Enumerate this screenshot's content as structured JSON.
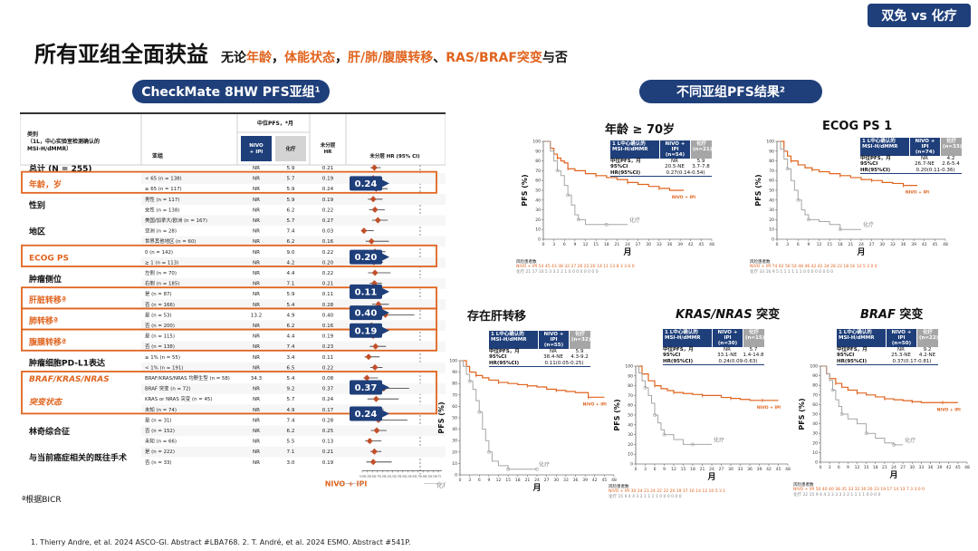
{
  "badge": "双免 vs 化疗",
  "title": "所有亚组全面获益",
  "subtitle_parts": [
    {
      "t": "无论",
      "hl": false
    },
    {
      "t": "年龄",
      "hl": true
    },
    {
      "t": "，",
      "hl": false
    },
    {
      "t": "体能状态",
      "hl": true
    },
    {
      "t": "，",
      "hl": false
    },
    {
      "t": "肝/肺/腹膜转移",
      "hl": true
    },
    {
      "t": "、",
      "hl": false
    },
    {
      "t": "RAS/BRAF突变",
      "hl": true
    },
    {
      "t": "与否",
      "hl": false
    }
  ],
  "left_pill": "CheckMate 8HW PFS亚组¹",
  "right_pill": "不同亚组PFS结果²",
  "forest": {
    "header": {
      "category": "类别\n（1L，中心实验室检测确认的\nMSI-H/dMMR）",
      "subgroup": "亚组",
      "median_pfs": "中位PFS，*月",
      "nivo": "NIVO\n+ IPI",
      "chemo": "化疗",
      "hr": "未分层\nHR",
      "plot": "未分层 HR (95% CI)"
    },
    "rows": [
      {
        "sub": "",
        "nv": "NR",
        "ch": "5.9",
        "hr": "0.21",
        "lo": 0.14,
        "hi": 0.32
      },
      {
        "sub": "< 65 (n = 138)",
        "nv": "NR",
        "ch": "5.7",
        "hr": "0.19",
        "lo": 0.11,
        "hi": 0.33
      },
      {
        "sub": "≥ 65 (n = 117)",
        "nv": "NR",
        "ch": "5.9",
        "hr": "0.24",
        "lo": 0.13,
        "hi": 0.44
      },
      {
        "sub": "男性 (n = 117)",
        "nv": "NR",
        "ch": "5.9",
        "hr": "0.19",
        "lo": 0.1,
        "hi": 0.35
      },
      {
        "sub": "女性 (n = 138)",
        "nv": "NR",
        "ch": "6.2",
        "hr": "0.22",
        "lo": 0.12,
        "hi": 0.39
      },
      {
        "sub": "美国/加拿大/欧洲 (n = 167)",
        "nv": "NR",
        "ch": "5.7",
        "hr": "0.27",
        "lo": 0.17,
        "hi": 0.44
      },
      {
        "sub": "亚洲 (n = 28)",
        "nv": "NR",
        "ch": "7.4",
        "hr": "0.03",
        "lo": 0.01,
        "hi": 0.2
      },
      {
        "sub": "世界其他地区 (n = 60)",
        "nv": "NR",
        "ch": "6.2",
        "hr": "0.16",
        "lo": 0.06,
        "hi": 0.46
      },
      {
        "sub": "0 (n = 142)",
        "nv": "NR",
        "ch": "9.0",
        "hr": "0.22",
        "lo": 0.12,
        "hi": 0.4
      },
      {
        "sub": "≥ 1 (n = 113)",
        "nv": "NR",
        "ch": "4.2",
        "hr": "0.20",
        "lo": 0.11,
        "hi": 0.36
      },
      {
        "sub": "左侧 (n = 70)",
        "nv": "NR",
        "ch": "4.4",
        "hr": "0.22",
        "lo": 0.1,
        "hi": 0.49
      },
      {
        "sub": "右侧 (n = 185)",
        "nv": "NR",
        "ch": "7.1",
        "hr": "0.21",
        "lo": 0.13,
        "hi": 0.34
      },
      {
        "sub": "是 (n = 87)",
        "nv": "NR",
        "ch": "5.9",
        "hr": "0.11",
        "lo": 0.05,
        "hi": 0.25
      },
      {
        "sub": "否 (n = 166)",
        "nv": "NR",
        "ch": "5.4",
        "hr": "0.28",
        "lo": 0.17,
        "hi": 0.46
      },
      {
        "sub": "是 (n = 53)",
        "nv": "13.2",
        "ch": "4.9",
        "hr": "0.40",
        "lo": 0.18,
        "hi": 0.9
      },
      {
        "sub": "否 (n = 200)",
        "nv": "NR",
        "ch": "6.2",
        "hr": "0.16",
        "lo": 0.1,
        "hi": 0.27
      },
      {
        "sub": "是 (n = 115)",
        "nv": "NR",
        "ch": "4.4",
        "hr": "0.19",
        "lo": 0.11,
        "hi": 0.34
      },
      {
        "sub": "否 (n = 138)",
        "nv": "NR",
        "ch": "7.4",
        "hr": "0.23",
        "lo": 0.13,
        "hi": 0.41
      },
      {
        "sub": "≥ 1% (n = 55)",
        "nv": "NR",
        "ch": "3.4",
        "hr": "0.11",
        "lo": 0.04,
        "hi": 0.3
      },
      {
        "sub": "< 1% (n = 191)",
        "nv": "NR",
        "ch": "6.5",
        "hr": "0.22",
        "lo": 0.14,
        "hi": 0.35
      },
      {
        "sub": "BRAF/KRAS/NRAS 均野生型 (n = 58)",
        "nv": "34.3",
        "ch": "5.4",
        "hr": "0.08",
        "lo": 0.02,
        "hi": 0.27
      },
      {
        "sub": "BRAF 突变 (n = 72)",
        "nv": "NR",
        "ch": "9.2",
        "hr": "0.37",
        "lo": 0.17,
        "hi": 0.81
      },
      {
        "sub": "KRAS or NRAS 突变 (n = 45)",
        "nv": "NR",
        "ch": "5.7",
        "hr": "0.24",
        "lo": 0.09,
        "hi": 0.63
      },
      {
        "sub": "未知 (n = 74)",
        "nv": "NR",
        "ch": "4.9",
        "hr": "0.17",
        "lo": 0.08,
        "hi": 0.37
      },
      {
        "sub": "是 (n = 31)",
        "nv": "NR",
        "ch": "7.4",
        "hr": "0.28",
        "lo": 0.1,
        "hi": 0.78
      },
      {
        "sub": "否 (n = 152)",
        "nv": "NR",
        "ch": "6.2",
        "hr": "0.25",
        "lo": 0.15,
        "hi": 0.42
      },
      {
        "sub": "未知 (n = 66)",
        "nv": "NR",
        "ch": "5.5",
        "hr": "0.13",
        "lo": 0.05,
        "hi": 0.33
      },
      {
        "sub": "是 (n = 222)",
        "nv": "NR",
        "ch": "7.1",
        "hr": "0.21",
        "lo": 0.14,
        "hi": 0.33
      },
      {
        "sub": "否 (n = 33)",
        "nv": "NR",
        "ch": "3.0",
        "hr": "0.19",
        "lo": 0.07,
        "hi": 0.51
      }
    ],
    "groups": [
      {
        "label": "总计 (N = 255)",
        "orange": false,
        "italic": false
      },
      {
        "label": "年龄，岁",
        "orange": true,
        "italic": false
      },
      {
        "label": "性别",
        "orange": false,
        "italic": false
      },
      {
        "label": "地区",
        "orange": false,
        "italic": false
      },
      {
        "label": "ECOG PS",
        "orange": true,
        "italic": false
      },
      {
        "label": "肿瘤侧位",
        "orange": false,
        "italic": false
      },
      {
        "label": "肝脏转移ª",
        "orange": true,
        "italic": false
      },
      {
        "label": "肺转移ª",
        "orange": true,
        "italic": false
      },
      {
        "label": "腹膜转移ª",
        "orange": true,
        "italic": false
      },
      {
        "label": "肿瘤细胞PD-L1表达",
        "orange": false,
        "italic": false
      },
      {
        "label": "BRAF/KRAS/NRAS",
        "orange": true,
        "italic": true
      },
      {
        "label": "突变状态",
        "orange": true,
        "italic": true
      },
      {
        "label": "林奇综合征",
        "orange": false,
        "italic": false
      },
      {
        "label": "与当前癌症相关的既往手术",
        "orange": false,
        "italic": false
      }
    ],
    "callouts": [
      "0.24",
      "0.20",
      "0.11",
      "0.40",
      "0.19",
      "0.37",
      "0.24"
    ],
    "axis_ticks": [
      "0.00",
      "0.25",
      "0.50",
      "0.75",
      "1.00",
      "1.25",
      "1.50",
      "1.75",
      "2.00",
      "2.25",
      "2.50",
      "2.75",
      "3.00",
      "3.25",
      "3.50",
      "3.75"
    ],
    "favors_nivo": "NIVO + IPI",
    "favors_chemo": "化疗",
    "footnote": "ª根据BICR"
  },
  "colors": {
    "nivo": "#e0641e",
    "chemo": "#a6a6a6",
    "navy": "#1f3f7a"
  },
  "chart_data": [
    {
      "type": "line",
      "title": "年龄 ≥ 70岁",
      "xlabel": "月",
      "ylabel": "PFS (%)",
      "xlim": [
        0,
        48
      ],
      "ylim": [
        0,
        100
      ],
      "x_ticks": [
        0,
        3,
        6,
        9,
        12,
        15,
        18,
        21,
        24,
        27,
        30,
        33,
        36,
        39,
        42,
        45,
        48
      ],
      "legend": {
        "h1": "1 L中心确认的 MSI-H/dMMR",
        "nivo_h": "NIVO + IPI (n=54)",
        "chemo_h": "化疗 (n=21)",
        "r1": [
          "中位PFS，月",
          "NR",
          "5.9"
        ],
        "r2": [
          "95%CI",
          "20.5-NE",
          "3.7-7.8"
        ],
        "r3": [
          "HR(95%CI)",
          "0.27(0.14-0.54)"
        ]
      },
      "series": [
        {
          "name": "NIVO + IPI",
          "x": [
            0,
            2,
            3,
            4,
            5,
            6,
            7,
            9,
            12,
            15,
            18,
            21,
            24,
            27,
            30,
            33,
            36,
            40
          ],
          "y": [
            100,
            93,
            87,
            83,
            80,
            78,
            72,
            70,
            67,
            65,
            63,
            61,
            58,
            56,
            54,
            52,
            50,
            50
          ]
        },
        {
          "name": "化疗",
          "x": [
            0,
            2,
            3,
            4,
            5,
            6,
            7,
            8,
            9,
            10,
            12,
            15,
            18,
            21,
            24
          ],
          "y": [
            100,
            90,
            80,
            70,
            65,
            55,
            45,
            35,
            25,
            20,
            15,
            15,
            15,
            15,
            15
          ]
        }
      ],
      "risk_header": "风险患者数",
      "risk": {
        "nivo_label": "NIVO + IPI",
        "chemo_label": "化疗",
        "nivo": "54 45 43 38 32 27 26 22 20 14 11 13 8 3 3 0 0",
        "chemo": "21 17 10 5 3 3 2 2 1 0 0 0 0 0 0 0 0"
      },
      "curve_labels": {
        "nivo": "NIVO + IPI",
        "chemo": "化疗"
      }
    },
    {
      "type": "line",
      "title": "ECOG PS 1",
      "xlabel": "月",
      "ylabel": "PFS (%)",
      "xlim": [
        0,
        48
      ],
      "ylim": [
        0,
        100
      ],
      "x_ticks": [
        0,
        3,
        6,
        9,
        12,
        15,
        18,
        21,
        24,
        27,
        30,
        33,
        36,
        39,
        42,
        45,
        48
      ],
      "legend": {
        "h1": "1 L中心确认的 MSI-H/dMMR",
        "nivo_h": "NIVO + IPI (n=74)",
        "chemo_h": "化疗 (n=33)",
        "r1": [
          "中位PFS，月",
          "NR",
          "4.2"
        ],
        "r2": [
          "95%CI",
          "26.7-NE",
          "2.6-5.4"
        ],
        "r3": [
          "HR(95%CI)",
          "0.20(0.11-0.36)"
        ]
      },
      "series": [
        {
          "name": "NIVO + IPI",
          "x": [
            0,
            2,
            3,
            4,
            6,
            8,
            10,
            12,
            15,
            18,
            21,
            24,
            27,
            30,
            33,
            36,
            40
          ],
          "y": [
            100,
            90,
            85,
            80,
            76,
            73,
            71,
            69,
            67,
            65,
            63,
            61,
            60,
            58,
            57,
            55,
            55
          ]
        },
        {
          "name": "化疗",
          "x": [
            0,
            1,
            2,
            3,
            4,
            5,
            6,
            7,
            8,
            9,
            12,
            15,
            18,
            21,
            24
          ],
          "y": [
            100,
            92,
            82,
            72,
            60,
            50,
            40,
            30,
            25,
            20,
            18,
            15,
            10,
            10,
            10
          ]
        }
      ],
      "risk_header": "风险患者数",
      "risk": {
        "nivo_label": "NIVO + IPI",
        "chemo_label": "化疗",
        "nivo": "74 62 56 54 48 46 42 42 34 28 22 18 16 12 5 3 0 0",
        "chemo": "33 16 9 5 1 1 1 1 1 1 0 0 0 0 0 0 0 0"
      },
      "curve_labels": {
        "nivo": "NIVO + IPI",
        "chemo": "化疗"
      }
    },
    {
      "type": "line",
      "title": "存在肝转移",
      "xlabel": "月",
      "ylabel": "PFS (%)",
      "xlim": [
        0,
        48
      ],
      "ylim": [
        0,
        100
      ],
      "x_ticks": [
        0,
        3,
        6,
        9,
        12,
        15,
        18,
        21,
        24,
        27,
        30,
        33,
        36,
        39,
        42,
        45,
        48
      ],
      "legend": {
        "h1": "1 L中心确认的 MSI-H/dMMR",
        "nivo_h": "NIVO + IPI (n=55)",
        "chemo_h": "化疗 (n=32)",
        "r1": [
          "中位PFS，月",
          "NR",
          "5.9"
        ],
        "r2": [
          "95%CI",
          "38.4-NE",
          "4.3-9.2"
        ],
        "r3": [
          "HR(95%CI)",
          "0.11(0.05-0.25)"
        ]
      },
      "series": [
        {
          "name": "NIVO + IPI",
          "x": [
            0,
            2,
            3,
            5,
            7,
            9,
            12,
            15,
            18,
            21,
            24,
            27,
            30,
            33,
            36,
            40,
            45
          ],
          "y": [
            100,
            95,
            90,
            87,
            85,
            83,
            81,
            80,
            79,
            78,
            77,
            75,
            74,
            73,
            72,
            68,
            68
          ]
        },
        {
          "name": "化疗",
          "x": [
            0,
            1,
            2,
            3,
            4,
            5,
            6,
            7,
            8,
            9,
            10,
            12,
            15,
            18,
            21,
            24
          ],
          "y": [
            100,
            95,
            88,
            82,
            75,
            65,
            55,
            40,
            30,
            20,
            12,
            8,
            5,
            5,
            5,
            5
          ]
        }
      ],
      "risk": {},
      "curve_labels": {
        "nivo": "NIVO + IPI",
        "chemo": "化疗"
      }
    },
    {
      "type": "line",
      "title_parts": [
        {
          "t": "KRAS/NRAS",
          "it": true
        },
        {
          "t": " 突变",
          "it": false
        }
      ],
      "xlabel": "月",
      "ylabel": "PFS (%)",
      "xlim": [
        0,
        48
      ],
      "ylim": [
        0,
        100
      ],
      "x_ticks": [
        0,
        3,
        6,
        9,
        12,
        15,
        18,
        21,
        24,
        27,
        30,
        33,
        36,
        39,
        42,
        45,
        48
      ],
      "legend": {
        "h1": "1 L中心确认的 MSI-H/dMMR",
        "nivo_h": "NIVO + IPI (n=30)",
        "chemo_h": "化疗 (n=15)",
        "r1": [
          "中位PFS，月",
          "NR",
          "5.7"
        ],
        "r2": [
          "95%CI",
          "33.1-NE",
          "1.4-14.8"
        ],
        "r3": [
          "HR(95%CI)",
          "0.24(0.09-0.63)"
        ]
      },
      "series": [
        {
          "name": "NIVO + IPI",
          "x": [
            0,
            2,
            4,
            6,
            8,
            10,
            12,
            15,
            18,
            21,
            24,
            27,
            30,
            33,
            36,
            40,
            45
          ],
          "y": [
            100,
            92,
            85,
            80,
            77,
            75,
            73,
            72,
            71,
            70,
            70,
            68,
            67,
            66,
            65,
            65,
            65
          ]
        },
        {
          "name": "化疗",
          "x": [
            0,
            1,
            2,
            3,
            4,
            5,
            6,
            7,
            8,
            9,
            12,
            15,
            18,
            21,
            24
          ],
          "y": [
            100,
            93,
            85,
            78,
            70,
            62,
            50,
            42,
            35,
            30,
            25,
            20,
            20,
            20,
            20
          ]
        }
      ],
      "risk_header": "风险患者数",
      "risk": {
        "nivo_label": "NIVO + IPI",
        "chemo_label": "化疗",
        "nivo": "30 24 23 24 22 22 20 19 17 16 14 12 10 5 3 1",
        "chemo": "15 9 4 4 3 2 1 1 1 1 0 0 0 0 0 0"
      },
      "curve_labels": {
        "nivo": "NIVO + IPI",
        "chemo": "化疗"
      }
    },
    {
      "type": "line",
      "title_parts": [
        {
          "t": "BRAF",
          "it": true
        },
        {
          "t": " 突变",
          "it": false
        }
      ],
      "xlabel": "月",
      "ylabel": "PFS (%)",
      "xlim": [
        0,
        48
      ],
      "ylim": [
        0,
        100
      ],
      "x_ticks": [
        0,
        3,
        6,
        9,
        12,
        15,
        18,
        21,
        24,
        27,
        30,
        33,
        36,
        39,
        42,
        45,
        48
      ],
      "legend": {
        "h1": "1 L中心确认的 MSI-H/dMMR",
        "nivo_h": "NIVO + IPI (n=50)",
        "chemo_h": "化疗 (n=22)",
        "r1": [
          "中位PFS，月",
          "NR",
          "9.2"
        ],
        "r2": [
          "95%CI",
          "25.3-NE",
          "4.2-NE"
        ],
        "r3": [
          "HR(95%CI)",
          "0.37(0.17-0.81)"
        ]
      },
      "series": [
        {
          "name": "NIVO + IPI",
          "x": [
            0,
            2,
            3,
            5,
            7,
            9,
            12,
            15,
            18,
            21,
            24,
            27,
            30,
            33,
            36,
            40,
            45
          ],
          "y": [
            100,
            92,
            87,
            82,
            78,
            75,
            72,
            70,
            68,
            66,
            65,
            64,
            63,
            62,
            62,
            62,
            62
          ]
        },
        {
          "name": "化疗",
          "x": [
            0,
            2,
            3,
            4,
            5,
            6,
            7,
            9,
            12,
            15,
            18,
            21,
            24,
            27
          ],
          "y": [
            100,
            92,
            85,
            75,
            65,
            58,
            50,
            45,
            40,
            30,
            25,
            20,
            18,
            18
          ]
        }
      ],
      "risk_header": "风险患者数",
      "risk": {
        "nivo_label": "NIVO + IPI",
        "chemo_label": "化疗",
        "nivo": "50 40 40 38 35 33 32 30 26 23 19 17 14 13 7 3 3 0 0",
        "chemo": "22 15 9 4 4 3 3 3 3 3 2 1 1 1 1 0 0 0 0"
      },
      "curve_labels": {
        "nivo": "NIVO + IPI",
        "chemo": "化疗"
      }
    }
  ],
  "refs": "1. Thierry Andre, et al. 2024 ASCO-GI. Abstract #LBA768. 2.  T. André, et al. 2024 ESMO. Abstract #541P."
}
